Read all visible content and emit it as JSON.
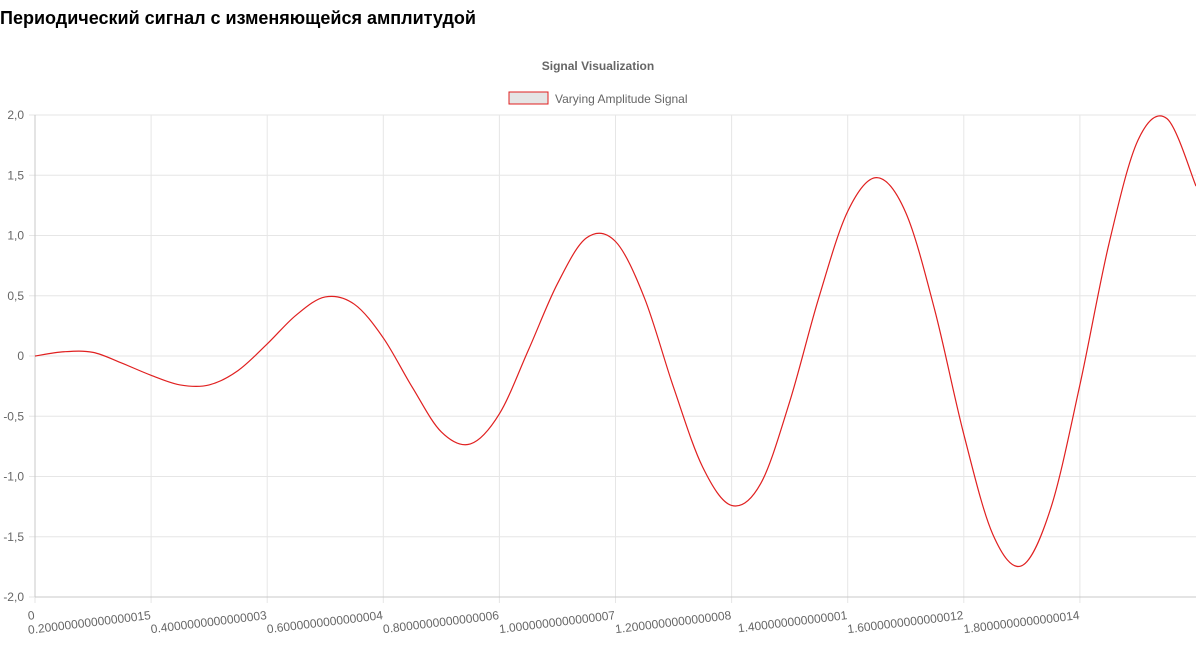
{
  "page": {
    "heading": "Периодический сигнал с изменяющейся амплитудой"
  },
  "colors": {
    "line": "#e02020",
    "legend_fill": "#e5e5e5",
    "grid": "#e6e6e6",
    "tick_text": "#666666",
    "title_text": "#666666"
  },
  "chart_data": {
    "type": "line",
    "title": "Signal Visualization",
    "legend_position": "top",
    "grid": true,
    "series": [
      {
        "name": "Varying Amplitude Signal",
        "x": [
          0,
          0.05,
          0.1,
          0.15,
          0.2,
          0.25,
          0.3,
          0.35,
          0.4,
          0.45,
          0.5,
          0.55,
          0.6,
          0.65,
          0.7,
          0.75,
          0.8,
          0.85,
          0.9,
          0.95,
          1.0,
          1.05,
          1.1,
          1.15,
          1.2,
          1.25,
          1.3,
          1.35,
          1.4,
          1.45,
          1.5,
          1.55,
          1.6,
          1.65,
          1.7,
          1.75,
          1.8,
          1.85,
          1.9,
          1.95,
          2.0
        ],
        "values": [
          0.0,
          0.035,
          0.03,
          -0.06,
          -0.16,
          -0.24,
          -0.24,
          -0.12,
          0.1,
          0.34,
          0.49,
          0.43,
          0.15,
          -0.26,
          -0.63,
          -0.73,
          -0.48,
          0.05,
          0.6,
          0.98,
          0.95,
          0.48,
          -0.26,
          -0.92,
          -1.24,
          -1.06,
          -0.38,
          0.48,
          1.2,
          1.48,
          1.19,
          0.38,
          -0.65,
          -1.48,
          -1.74,
          -1.26,
          -0.24,
          0.93,
          1.79,
          1.97,
          1.41
        ]
      }
    ],
    "x_ticks": [
      "0",
      "0.20000000000000015",
      "0.4000000000000003",
      "0.6000000000000004",
      "0.8000000000000006",
      "1.0000000000000007",
      "1.2000000000000008",
      "1.400000000000001",
      "1.6000000000000012",
      "1.8000000000000014"
    ],
    "y_ticks": [
      "2,0",
      "1,5",
      "1,0",
      "0,5",
      "0",
      "-0,5",
      "-1,0",
      "-1,5",
      "-2,0"
    ],
    "xlim": [
      0,
      2.0
    ],
    "ylim": [
      -2,
      2
    ]
  }
}
